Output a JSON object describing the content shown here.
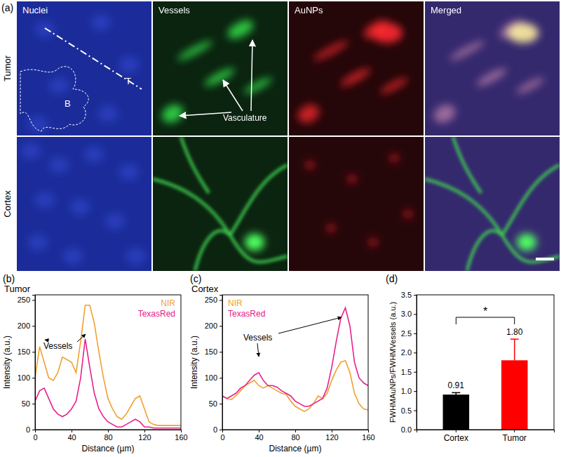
{
  "panel_a": {
    "panel_label": "(a)",
    "columns": [
      "Nuclei",
      "Vessels",
      "AuNPs",
      "Merged"
    ],
    "rows": [
      "Tumor",
      "Cortex"
    ],
    "region_labels": [
      "T",
      "B"
    ],
    "annotation": "Vasculature"
  },
  "chart_data": [
    {
      "type": "line",
      "panel_label": "(b)",
      "title": "Tumor",
      "x_label": "Distance (µm)",
      "y_label": "Intensity (a.u.)",
      "x": [
        0,
        5,
        10,
        15,
        20,
        25,
        30,
        35,
        40,
        45,
        50,
        55,
        60,
        65,
        70,
        75,
        80,
        85,
        90,
        95,
        100,
        105,
        110,
        115,
        120,
        125,
        130,
        135,
        140,
        145,
        150,
        155,
        160
      ],
      "series": [
        {
          "name": "NIR",
          "color": "#f0a030",
          "values": [
            100,
            160,
            130,
            100,
            95,
            110,
            140,
            135,
            130,
            110,
            170,
            240,
            240,
            205,
            150,
            100,
            60,
            40,
            25,
            20,
            30,
            45,
            60,
            65,
            40,
            15,
            10,
            8,
            8,
            8,
            8,
            8,
            8
          ]
        },
        {
          "name": "TexasRed",
          "color": "#e8208a",
          "values": [
            55,
            75,
            80,
            60,
            40,
            30,
            25,
            30,
            40,
            55,
            100,
            175,
            120,
            70,
            40,
            25,
            15,
            10,
            5,
            5,
            10,
            15,
            20,
            15,
            5,
            5,
            3,
            3,
            3,
            3,
            3,
            3,
            3
          ]
        }
      ],
      "xlim": [
        0,
        160
      ],
      "xticks": [
        0,
        40,
        80,
        120,
        160
      ],
      "ylim": [
        0,
        260
      ],
      "yticks": [
        0,
        50,
        100,
        150,
        200,
        250
      ],
      "legend": "top-right",
      "annotations": [
        "Vessels"
      ]
    },
    {
      "type": "line",
      "panel_label": "(c)",
      "title": "Cortex",
      "x_label": "Distance (µm)",
      "y_label": "Intensity (a.u.)",
      "x": [
        0,
        5,
        10,
        15,
        20,
        25,
        30,
        35,
        40,
        45,
        50,
        55,
        60,
        65,
        70,
        75,
        80,
        85,
        90,
        95,
        100,
        105,
        110,
        115,
        120,
        125,
        130,
        135,
        140,
        145,
        150,
        155,
        160
      ],
      "series": [
        {
          "name": "NIR",
          "color": "#f0a030",
          "values": [
            65,
            60,
            58,
            65,
            75,
            85,
            90,
            95,
            85,
            80,
            85,
            80,
            75,
            70,
            68,
            55,
            45,
            40,
            35,
            40,
            50,
            65,
            60,
            70,
            95,
            115,
            130,
            133,
            110,
            70,
            50,
            40,
            38
          ]
        },
        {
          "name": "TexasRed",
          "color": "#e8208a",
          "values": [
            65,
            60,
            65,
            70,
            80,
            85,
            95,
            105,
            110,
            95,
            85,
            85,
            82,
            75,
            70,
            65,
            55,
            50,
            45,
            45,
            50,
            55,
            60,
            80,
            120,
            170,
            215,
            235,
            200,
            130,
            100,
            90,
            85
          ]
        }
      ],
      "xlim": [
        0,
        160
      ],
      "xticks": [
        0,
        40,
        80,
        120,
        160
      ],
      "ylim": [
        0,
        260
      ],
      "yticks": [
        0,
        50,
        100,
        150,
        200,
        250
      ],
      "legend": "top-left",
      "annotations": [
        "Vessels"
      ]
    },
    {
      "type": "bar",
      "panel_label": "(d)",
      "y_label": "FWHMAuNPs/FWHMVessels (a.u.)",
      "categories": [
        "Cortex",
        "Tumor"
      ],
      "values": [
        0.91,
        1.8
      ],
      "value_labels": [
        "0.91",
        "1.80"
      ],
      "data_labels": true,
      "errors": [
        0.05,
        0.55
      ],
      "colors": [
        "#000000",
        "#ff0000"
      ],
      "ylim": [
        0,
        3.5
      ],
      "yticks": [
        {
          "value": 0,
          "label": "0.0"
        },
        {
          "value": 0.5,
          "label": "0.5"
        },
        {
          "value": 1,
          "label": "1.0"
        },
        {
          "value": 1.5,
          "label": "1.5"
        },
        {
          "value": 2,
          "label": "2.0"
        },
        {
          "value": 2.5,
          "label": "2.5"
        },
        {
          "value": 3,
          "label": "3.0"
        },
        {
          "value": 3.5,
          "label": "3.5"
        }
      ],
      "annotations": [
        "*"
      ]
    }
  ]
}
